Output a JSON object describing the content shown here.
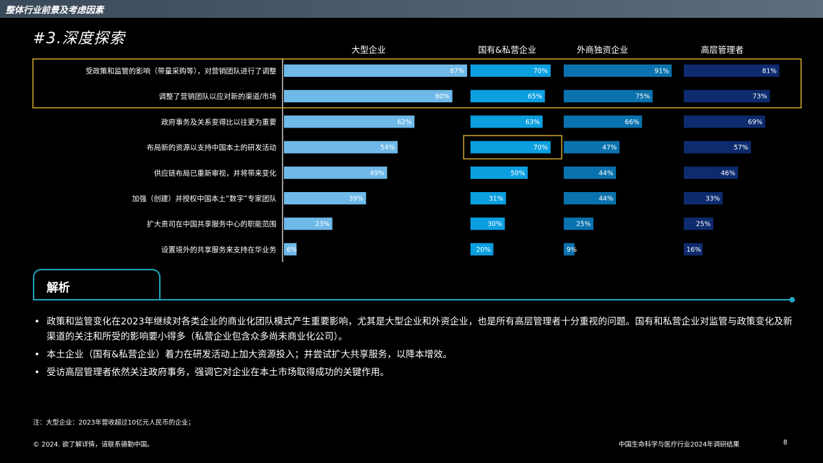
{
  "header": {
    "section_title": "整体行业前景及考虑因素"
  },
  "subtitle": "#3.深度探索",
  "chart_data": {
    "type": "bar",
    "orientation": "horizontal",
    "categories": [
      "受政策和监管的影响（带量采购等），对营销团队进行了调整",
      "调整了营销团队以应对新的渠道/市场",
      "政府事务及关系变得比以往更为重要",
      "布局新的资源以支持中国本土的研发活动",
      "供应链布局已重新审视，并将带来变化",
      "加强（创建）并授权中国本土“数字”专家团队",
      "扩大贵司在中国共享服务中心的职能范围",
      "设置境外的共享服务来支持在华业务"
    ],
    "series": [
      {
        "name": "大型企业",
        "color": "#6fb9e9",
        "values": [
          87,
          80,
          62,
          54,
          49,
          39,
          23,
          6
        ]
      },
      {
        "name": "国有&私营企业",
        "color": "#0b9fe0",
        "values": [
          70,
          65,
          63,
          70,
          50,
          31,
          30,
          20
        ]
      },
      {
        "name": "外商独资企业",
        "color": "#0a72ae",
        "values": [
          91,
          75,
          66,
          47,
          44,
          44,
          25,
          9
        ]
      },
      {
        "name": "高层管理者",
        "color": "#0d2b6e",
        "values": [
          81,
          73,
          69,
          57,
          46,
          33,
          25,
          16
        ]
      }
    ],
    "value_suffix": "%",
    "xlim": [
      0,
      100
    ],
    "highlights": [
      {
        "rows": [
          0,
          1
        ],
        "series": "all",
        "color": "#c9a227"
      },
      {
        "rows": [
          3
        ],
        "series": "国有&私营企业",
        "color": "#c9a227"
      }
    ]
  },
  "analysis": {
    "tab_label": "解析",
    "bullets": [
      "政策和监管变化在2023年继续对各类企业的商业化团队模式产生重要影响，尤其是大型企业和外资企业，也是所有高层管理者十分重视的问题。国有和私营企业对监管与政策变化及新渠道的关注和所受的影响要小得多（私营企业包含众多尚未商业化公司）。",
      "本土企业（国有&私营企业）着力在研发活动上加大资源投入；并尝试扩大共享服务，以降本增效。",
      "受访高层管理者依然关注政府事务，强调它对企业在本土市场取得成功的关键作用。"
    ]
  },
  "footer": {
    "note": "注：大型企业：2023年营收超过10亿元人民币的企业；",
    "copyright": "© 2024. 欲了解详情，请联系德勤中国。",
    "report_title": "中国生命科学与医疗行业2024年调研结果",
    "page_number": "8"
  }
}
